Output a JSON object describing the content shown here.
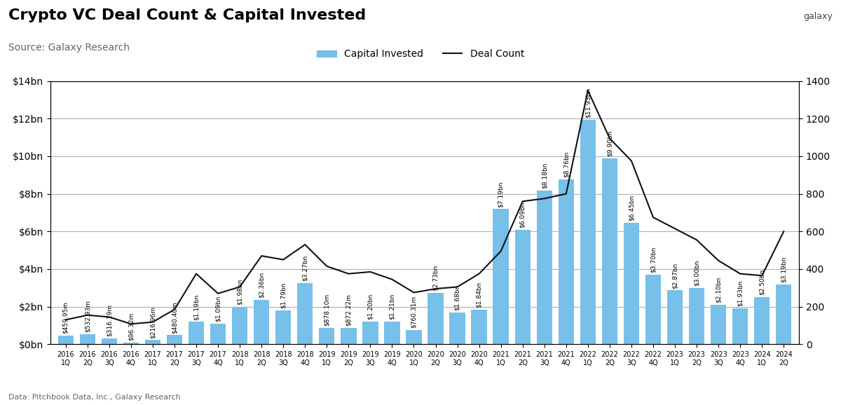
{
  "chart_data": {
    "type": "bar",
    "title": "Crypto VC Deal Count & Capital Invested",
    "subtitle": "Source: Galaxy Research",
    "annotations": [
      "Data: Pitchbook Data, Inc., Galaxy Research",
      "galaxy"
    ],
    "categories": [
      "2016\n1Q",
      "2016\n2Q",
      "2016\n3Q",
      "2016\n4Q",
      "2017\n1Q",
      "2017\n2Q",
      "2017\n3Q",
      "2017\n4Q",
      "2018\n1Q",
      "2018\n2Q",
      "2018\n3Q",
      "2018\n4Q",
      "2019\n1Q",
      "2019\n2Q",
      "2019\n3Q",
      "2019\n4Q",
      "2020\n1Q",
      "2020\n2Q",
      "2020\n3Q",
      "2020\n4Q",
      "2021\n1Q",
      "2021\n2Q",
      "2021\n3Q",
      "2021\n4Q",
      "2022\n1Q",
      "2022\n2Q",
      "2022\n3Q",
      "2022\n4Q",
      "2023\n1Q",
      "2023\n2Q",
      "2023\n3Q",
      "2023\n4Q",
      "2024\n1Q",
      "2024\n2Q"
    ],
    "series": [
      {
        "name": "Capital Invested",
        "type": "bar",
        "color": "#76c0ea",
        "data_labels": true,
        "values": [
          0.45995,
          0.53293,
          0.31619,
          0.09632,
          0.21696,
          0.4804,
          1.19,
          1.09,
          1.98,
          2.36,
          1.79,
          3.27,
          0.8781,
          0.87222,
          1.2,
          1.21,
          0.76031,
          2.73,
          1.68,
          1.84,
          7.19,
          6.09,
          8.18,
          8.76,
          11.93,
          9.9,
          6.45,
          3.7,
          2.87,
          3.0,
          2.1,
          1.93,
          2.5,
          3.19
        ],
        "value_labels": [
          "$459.95m",
          "$532.93m",
          "$316.19m",
          "$96.32m",
          "$216.96m",
          "$480.40m",
          "$1.19bn",
          "$1.09bn",
          "$1.98bn",
          "$2.36bn",
          "$1.79bn",
          "$3.27bn",
          "$878.10m",
          "$872.22m",
          "$1.20bn",
          "$1.21bn",
          "$760.31m",
          "$2.73bn",
          "$1.68bn",
          "$1.84bn",
          "$7.19bn",
          "$6.09bn",
          "$8.18bn",
          "$8.76bn",
          "$11.93bn",
          "$9.90bn",
          "$6.45bn",
          "$3.70bn",
          "$2.87bn",
          "$3.00bn",
          "$2.10bn",
          "$1.93bn",
          "$2.50bn",
          "$3.19bn"
        ]
      },
      {
        "name": "Deal Count",
        "type": "line",
        "axis": "y2",
        "color": "#111111",
        "values": [
          130,
          155,
          145,
          108,
          118,
          185,
          375,
          270,
          305,
          470,
          450,
          530,
          415,
          375,
          385,
          345,
          275,
          295,
          305,
          375,
          495,
          760,
          775,
          800,
          1350,
          1095,
          975,
          675,
          615,
          555,
          445,
          375,
          365,
          600
        ]
      }
    ],
    "ylim": [
      0,
      14
    ],
    "yticks": [
      {
        "value": 0,
        "label": "$0bn"
      },
      {
        "value": 2,
        "label": "$2bn"
      },
      {
        "value": 4,
        "label": "$4bn"
      },
      {
        "value": 6,
        "label": "$6bn"
      },
      {
        "value": 8,
        "label": "$8bn"
      },
      {
        "value": 10,
        "label": "$10bn"
      },
      {
        "value": 12,
        "label": "$12bn"
      },
      {
        "value": 14,
        "label": "$14bn"
      }
    ],
    "y2lim": [
      0,
      1400
    ],
    "y2ticks": [
      0,
      200,
      400,
      600,
      800,
      1000,
      1200,
      1400
    ],
    "grid": true,
    "legend": "upper center"
  }
}
